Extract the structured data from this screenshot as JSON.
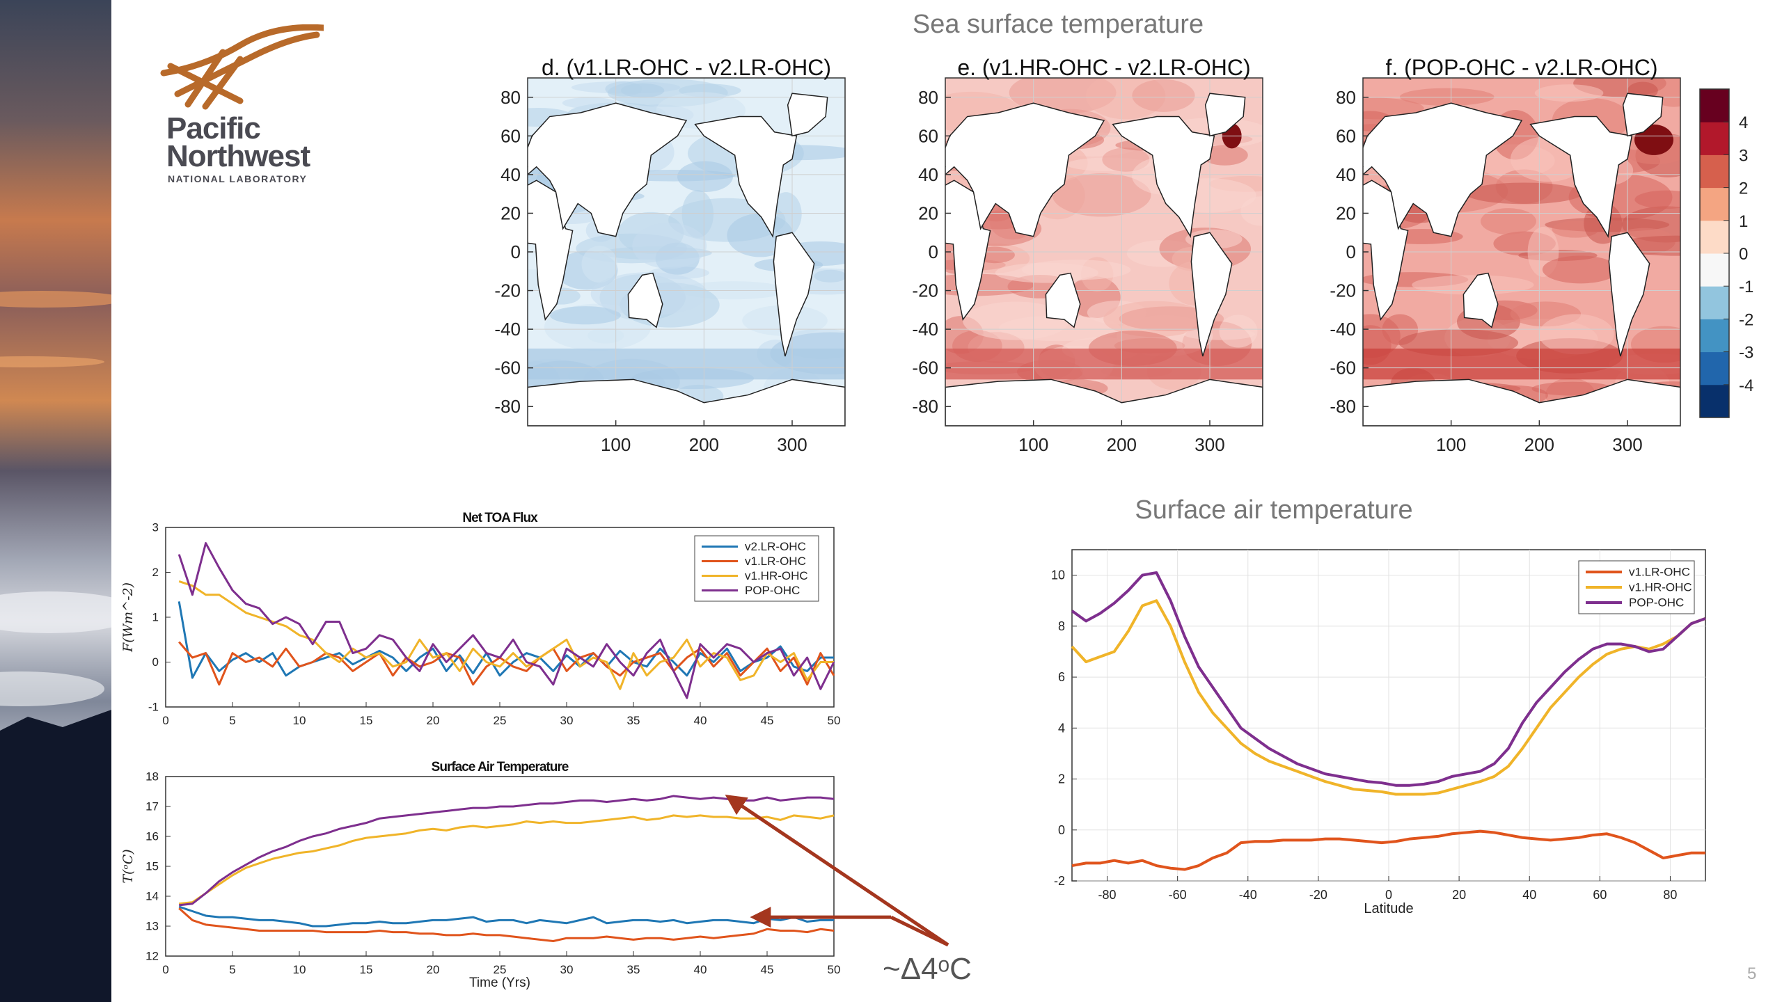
{
  "header": {
    "sst_title": "Sea surface temperature",
    "sat_title": "Surface air temperature",
    "page_number": "5",
    "annotation": "~Δ4ᵒC"
  },
  "logo": {
    "line1": "Pacific",
    "line2": "Northwest",
    "line3": "NATIONAL LABORATORY",
    "color": "#b86a2a"
  },
  "colors": {
    "v2_LR_OHC": "#1f77b4",
    "v1_LR_OHC": "#e0541c",
    "v1_HR_OHC": "#f0b429",
    "POP_OHC": "#7e2f8e",
    "arrow": "#a4361e"
  },
  "chart_data": [
    {
      "type": "heatmap",
      "title": "d. (v1.LR-OHC - v2.LR-OHC)",
      "x_ticks": [
        "100",
        "200",
        "300"
      ],
      "y_ticks": [
        "80",
        "60",
        "40",
        "20",
        "0",
        "-20",
        "-40",
        "-60",
        "-80"
      ],
      "anomaly": "cool",
      "xlim": [
        0,
        360
      ],
      "ylim": [
        -90,
        90
      ]
    },
    {
      "type": "heatmap",
      "title": "e. (v1.HR-OHC - v2.LR-OHC)",
      "x_ticks": [
        "100",
        "200",
        "300"
      ],
      "y_ticks": [
        "80",
        "60",
        "40",
        "20",
        "0",
        "-20",
        "-40",
        "-60",
        "-80"
      ],
      "anomaly": "warm",
      "xlim": [
        0,
        360
      ],
      "ylim": [
        -90,
        90
      ]
    },
    {
      "type": "heatmap",
      "title": "f. (POP-OHC   - v2.LR-OHC)",
      "x_ticks": [
        "100",
        "200",
        "300"
      ],
      "y_ticks": [
        "80",
        "60",
        "40",
        "20",
        "0",
        "-20",
        "-40",
        "-60",
        "-80"
      ],
      "anomaly": "hot",
      "xlim": [
        0,
        360
      ],
      "ylim": [
        -90,
        90
      ],
      "colorbar": {
        "ticks": [
          "4",
          "3",
          "2",
          "1",
          "0",
          "-1",
          "-2",
          "-3",
          "-4"
        ],
        "range": [
          -5,
          5
        ],
        "colors": [
          "#08306b",
          "#2166ac",
          "#4393c3",
          "#92c5de",
          "#f7f7f7",
          "#fddbc7",
          "#f4a582",
          "#d6604d",
          "#b2182b",
          "#67001f"
        ]
      }
    },
    {
      "type": "line",
      "title": "Net TOA Flux",
      "ylabel": "F(Wm^-2)",
      "xlabel": "",
      "xlim": [
        0,
        50
      ],
      "ylim": [
        -1,
        3
      ],
      "x_ticks": [
        0,
        5,
        10,
        15,
        20,
        25,
        30,
        35,
        40,
        45,
        50
      ],
      "y_ticks": [
        -1,
        0,
        1,
        2,
        3
      ],
      "legend": "top-right",
      "x": [
        1,
        2,
        3,
        4,
        5,
        6,
        7,
        8,
        9,
        10,
        11,
        12,
        13,
        14,
        15,
        16,
        17,
        18,
        19,
        20,
        21,
        22,
        23,
        24,
        25,
        26,
        27,
        28,
        29,
        30,
        31,
        32,
        33,
        34,
        35,
        36,
        37,
        38,
        39,
        40,
        41,
        42,
        43,
        44,
        45,
        46,
        47,
        48,
        49,
        50
      ],
      "series": [
        {
          "name": "v2.LR-OHC",
          "color": "#1f77b4",
          "values": [
            1.35,
            -0.35,
            0.2,
            -0.2,
            0.05,
            0.2,
            0.0,
            0.2,
            -0.3,
            -0.1,
            0.0,
            0.1,
            0.2,
            -0.05,
            0.1,
            0.25,
            0.1,
            -0.2,
            0.1,
            0.3,
            -0.2,
            0.15,
            -0.25,
            0.2,
            -0.3,
            0.0,
            0.2,
            0.1,
            -0.2,
            0.15,
            -0.1,
            0.2,
            -0.1,
            0.25,
            0.0,
            -0.1,
            0.3,
            0.0,
            -0.3,
            0.2,
            0.0,
            0.3,
            -0.2,
            0.0,
            0.1,
            0.35,
            -0.1,
            -0.2,
            0.1,
            0.1
          ]
        },
        {
          "name": "v1.LR-OHC",
          "color": "#e0541c",
          "values": [
            0.45,
            0.1,
            0.2,
            -0.5,
            0.2,
            0.0,
            0.1,
            -0.1,
            0.3,
            -0.1,
            0.0,
            0.2,
            0.1,
            -0.2,
            0.0,
            0.2,
            -0.3,
            0.1,
            -0.1,
            0.0,
            0.2,
            0.1,
            -0.5,
            -0.1,
            0.1,
            -0.1,
            -0.2,
            0.1,
            0.3,
            -0.2,
            0.1,
            0.2,
            -0.1,
            -0.3,
            0.0,
            0.1,
            0.2,
            -0.2,
            0.1,
            0.3,
            -0.1,
            0.2,
            -0.3,
            0.0,
            0.3,
            -0.2,
            0.1,
            -0.5,
            0.2,
            -0.3
          ]
        },
        {
          "name": "v1.HR-OHC",
          "color": "#f0b429",
          "values": [
            1.8,
            1.7,
            1.5,
            1.5,
            1.3,
            1.1,
            1.0,
            0.9,
            0.8,
            0.6,
            0.5,
            0.2,
            0.0,
            0.3,
            0.1,
            0.2,
            -0.1,
            0.0,
            0.5,
            0.1,
            0.2,
            -0.2,
            0.3,
            0.0,
            -0.1,
            0.2,
            -0.1,
            0.1,
            0.3,
            0.5,
            -0.1,
            0.1,
            0.0,
            -0.6,
            0.2,
            -0.3,
            0.0,
            0.1,
            0.5,
            -0.1,
            0.2,
            0.1,
            -0.4,
            -0.3,
            0.2,
            0.0,
            0.2,
            -0.4,
            0.0,
            0.0
          ]
        },
        {
          "name": "POP-OHC",
          "color": "#7e2f8e",
          "values": [
            2.4,
            1.5,
            2.65,
            2.1,
            1.6,
            1.3,
            1.2,
            0.85,
            1.0,
            0.85,
            0.4,
            0.9,
            0.9,
            0.2,
            0.3,
            0.6,
            0.5,
            0.1,
            -0.2,
            0.4,
            0.0,
            0.3,
            0.6,
            0.2,
            0.1,
            0.5,
            0.0,
            -0.1,
            -0.5,
            0.3,
            0.1,
            -0.1,
            0.4,
            0.0,
            -0.3,
            0.2,
            0.5,
            -0.2,
            -0.8,
            0.4,
            0.1,
            0.4,
            0.3,
            0.0,
            0.2,
            0.3,
            -0.3,
            0.1,
            -0.6,
            0.0
          ]
        }
      ]
    },
    {
      "type": "line",
      "title": "Surface Air Temperature",
      "ylabel": "T(ᵒC)",
      "xlabel": "Time (Yrs)",
      "xlim": [
        0,
        50
      ],
      "ylim": [
        12,
        18
      ],
      "x_ticks": [
        0,
        5,
        10,
        15,
        20,
        25,
        30,
        35,
        40,
        45,
        50
      ],
      "y_ticks": [
        12,
        13,
        14,
        15,
        16,
        17,
        18
      ],
      "x": [
        1,
        2,
        3,
        4,
        5,
        6,
        7,
        8,
        9,
        10,
        11,
        12,
        13,
        14,
        15,
        16,
        17,
        18,
        19,
        20,
        21,
        22,
        23,
        24,
        25,
        26,
        27,
        28,
        29,
        30,
        31,
        32,
        33,
        34,
        35,
        36,
        37,
        38,
        39,
        40,
        41,
        42,
        43,
        44,
        45,
        46,
        47,
        48,
        49,
        50
      ],
      "series": [
        {
          "color": "#1f77b4",
          "values": [
            13.65,
            13.5,
            13.35,
            13.3,
            13.3,
            13.25,
            13.2,
            13.2,
            13.15,
            13.1,
            13.0,
            13.0,
            13.05,
            13.1,
            13.1,
            13.15,
            13.1,
            13.1,
            13.15,
            13.2,
            13.2,
            13.25,
            13.3,
            13.15,
            13.2,
            13.2,
            13.1,
            13.2,
            13.15,
            13.1,
            13.2,
            13.3,
            13.1,
            13.15,
            13.2,
            13.2,
            13.15,
            13.2,
            13.1,
            13.15,
            13.2,
            13.2,
            13.15,
            13.1,
            13.25,
            13.2,
            13.3,
            13.15,
            13.2,
            13.2
          ]
        },
        {
          "color": "#e0541c",
          "values": [
            13.6,
            13.2,
            13.05,
            13.0,
            12.95,
            12.9,
            12.85,
            12.85,
            12.85,
            12.85,
            12.85,
            12.8,
            12.8,
            12.8,
            12.8,
            12.85,
            12.8,
            12.8,
            12.75,
            12.75,
            12.7,
            12.7,
            12.75,
            12.7,
            12.7,
            12.65,
            12.6,
            12.55,
            12.5,
            12.6,
            12.6,
            12.6,
            12.65,
            12.6,
            12.55,
            12.6,
            12.6,
            12.55,
            12.6,
            12.65,
            12.6,
            12.65,
            12.7,
            12.75,
            12.9,
            12.85,
            12.85,
            12.8,
            12.9,
            12.85
          ]
        },
        {
          "color": "#f0b429",
          "values": [
            13.75,
            13.8,
            14.1,
            14.4,
            14.7,
            14.95,
            15.1,
            15.25,
            15.35,
            15.45,
            15.5,
            15.6,
            15.7,
            15.85,
            15.95,
            16.0,
            16.05,
            16.1,
            16.2,
            16.25,
            16.2,
            16.3,
            16.35,
            16.3,
            16.35,
            16.4,
            16.5,
            16.45,
            16.5,
            16.45,
            16.45,
            16.5,
            16.55,
            16.6,
            16.65,
            16.55,
            16.6,
            16.7,
            16.65,
            16.7,
            16.65,
            16.65,
            16.6,
            16.6,
            16.65,
            16.55,
            16.7,
            16.65,
            16.6,
            16.7
          ]
        },
        {
          "color": "#7e2f8e",
          "values": [
            13.7,
            13.75,
            14.1,
            14.5,
            14.8,
            15.05,
            15.3,
            15.5,
            15.65,
            15.85,
            16.0,
            16.1,
            16.25,
            16.35,
            16.45,
            16.6,
            16.65,
            16.7,
            16.75,
            16.8,
            16.85,
            16.9,
            16.95,
            16.95,
            17.0,
            17.0,
            17.05,
            17.1,
            17.1,
            17.15,
            17.2,
            17.2,
            17.15,
            17.2,
            17.25,
            17.2,
            17.25,
            17.35,
            17.3,
            17.25,
            17.3,
            17.25,
            17.2,
            17.2,
            17.3,
            17.2,
            17.25,
            17.3,
            17.3,
            17.25
          ]
        }
      ]
    },
    {
      "type": "line",
      "title": "",
      "xlabel": "Latitude",
      "ylabel": "",
      "xlim": [
        -90,
        90
      ],
      "ylim": [
        -2,
        11
      ],
      "x_ticks": [
        -80,
        -60,
        -40,
        -20,
        0,
        20,
        40,
        60,
        80
      ],
      "y_ticks": [
        -2,
        0,
        2,
        4,
        6,
        8,
        10
      ],
      "legend": "top-right",
      "x": [
        -90,
        -86,
        -82,
        -78,
        -74,
        -70,
        -66,
        -62,
        -58,
        -54,
        -50,
        -46,
        -42,
        -38,
        -34,
        -30,
        -26,
        -22,
        -18,
        -14,
        -10,
        -6,
        -2,
        2,
        6,
        10,
        14,
        18,
        22,
        26,
        30,
        34,
        38,
        42,
        46,
        50,
        54,
        58,
        62,
        66,
        70,
        74,
        78,
        82,
        86,
        90
      ],
      "series": [
        {
          "name": "v1.LR-OHC",
          "color": "#e0541c",
          "values": [
            -1.4,
            -1.3,
            -1.3,
            -1.2,
            -1.3,
            -1.2,
            -1.4,
            -1.5,
            -1.55,
            -1.4,
            -1.1,
            -0.9,
            -0.5,
            -0.45,
            -0.45,
            -0.4,
            -0.4,
            -0.4,
            -0.35,
            -0.35,
            -0.4,
            -0.45,
            -0.5,
            -0.45,
            -0.35,
            -0.3,
            -0.25,
            -0.15,
            -0.1,
            -0.05,
            -0.1,
            -0.2,
            -0.3,
            -0.35,
            -0.4,
            -0.35,
            -0.3,
            -0.2,
            -0.15,
            -0.3,
            -0.5,
            -0.8,
            -1.1,
            -1.0,
            -0.9,
            -0.9
          ]
        },
        {
          "name": "v1.HR-OHC",
          "color": "#f0b429",
          "values": [
            7.2,
            6.6,
            6.8,
            7.0,
            7.8,
            8.8,
            9.0,
            8.0,
            6.6,
            5.4,
            4.6,
            4.0,
            3.4,
            3.0,
            2.7,
            2.5,
            2.3,
            2.1,
            1.9,
            1.75,
            1.6,
            1.55,
            1.5,
            1.4,
            1.4,
            1.4,
            1.45,
            1.6,
            1.75,
            1.9,
            2.1,
            2.5,
            3.2,
            4.0,
            4.8,
            5.4,
            6.0,
            6.5,
            6.9,
            7.1,
            7.2,
            7.1,
            7.3,
            7.6,
            8.1,
            8.3
          ]
        },
        {
          "name": "POP-OHC",
          "color": "#7e2f8e",
          "values": [
            8.6,
            8.2,
            8.5,
            8.9,
            9.4,
            10.0,
            10.1,
            9.0,
            7.6,
            6.4,
            5.6,
            4.8,
            4.0,
            3.6,
            3.2,
            2.9,
            2.6,
            2.4,
            2.2,
            2.1,
            2.0,
            1.9,
            1.85,
            1.75,
            1.75,
            1.8,
            1.9,
            2.1,
            2.2,
            2.3,
            2.6,
            3.2,
            4.2,
            5.0,
            5.6,
            6.2,
            6.7,
            7.1,
            7.3,
            7.3,
            7.2,
            7.0,
            7.1,
            7.6,
            8.1,
            8.3
          ]
        }
      ]
    }
  ]
}
